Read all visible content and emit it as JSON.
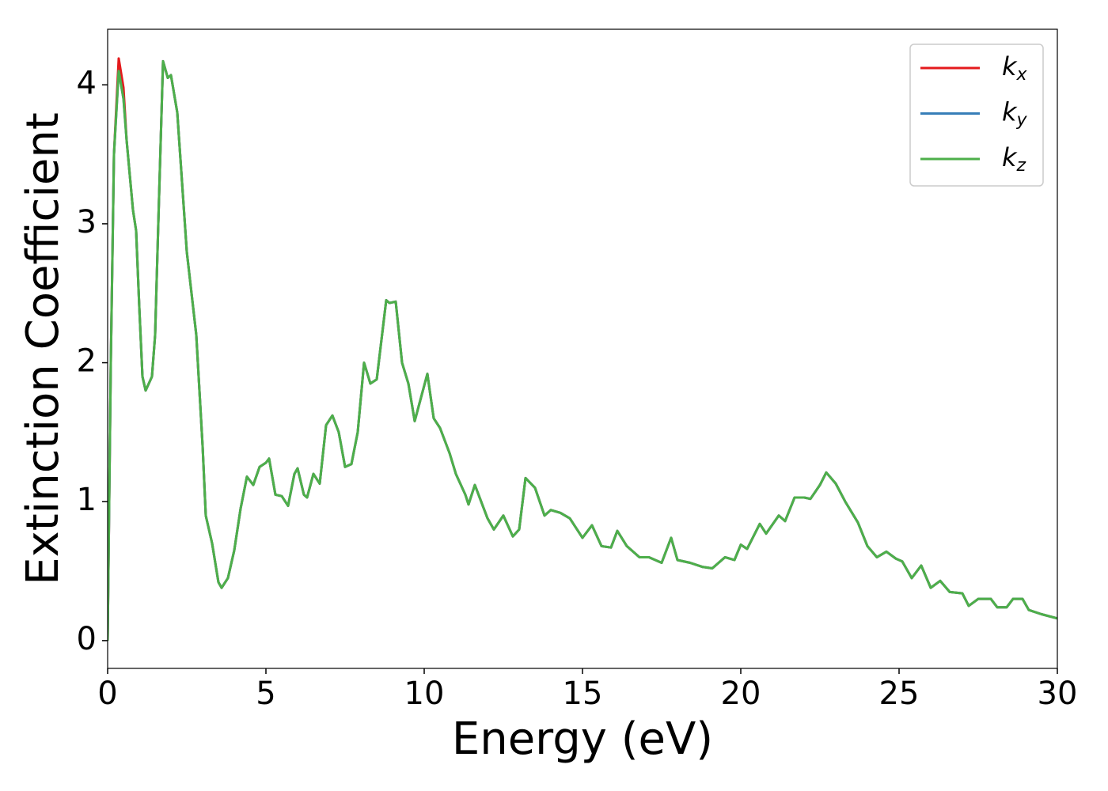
{
  "chart_data": {
    "type": "line",
    "xlabel": "Energy (eV)",
    "ylabel": "Extinction Coefficient",
    "x": [
      0,
      0.1,
      0.2,
      0.35,
      0.5,
      0.6,
      0.8,
      0.9,
      1.0,
      1.1,
      1.2,
      1.4,
      1.5,
      1.6,
      1.75,
      1.9,
      2.0,
      2.2,
      2.5,
      2.8,
      3.0,
      3.1,
      3.3,
      3.5,
      3.6,
      3.8,
      4.0,
      4.2,
      4.4,
      4.6,
      4.8,
      5.0,
      5.1,
      5.3,
      5.5,
      5.7,
      5.9,
      6.0,
      6.2,
      6.3,
      6.5,
      6.7,
      6.9,
      7.1,
      7.3,
      7.5,
      7.7,
      7.9,
      8.1,
      8.3,
      8.5,
      8.8,
      8.9,
      9.1,
      9.3,
      9.5,
      9.7,
      9.9,
      10.1,
      10.3,
      10.5,
      10.8,
      11.0,
      11.3,
      11.4,
      11.6,
      11.8,
      12.0,
      12.2,
      12.5,
      12.8,
      13.0,
      13.2,
      13.5,
      13.8,
      14.0,
      14.3,
      14.6,
      15.0,
      15.3,
      15.6,
      15.9,
      16.1,
      16.4,
      16.8,
      17.1,
      17.5,
      17.8,
      18.0,
      18.4,
      18.8,
      19.1,
      19.5,
      19.8,
      20.0,
      20.2,
      20.6,
      20.8,
      21.2,
      21.4,
      21.7,
      22.0,
      22.2,
      22.5,
      22.7,
      23.0,
      23.3,
      23.7,
      24.0,
      24.3,
      24.6,
      24.9,
      25.1,
      25.4,
      25.7,
      26.0,
      26.3,
      26.6,
      27.0,
      27.2,
      27.5,
      27.9,
      28.1,
      28.4,
      28.6,
      28.9,
      29.1,
      29.5,
      30.0
    ],
    "series": [
      {
        "name": "kx",
        "color": "#e41a1c",
        "values": [
          0,
          2.0,
          3.5,
          4.19,
          3.98,
          3.6,
          3.1,
          2.95,
          2.4,
          1.9,
          1.8,
          1.9,
          2.2,
          3.0,
          4.17,
          4.05,
          4.07,
          3.8,
          2.8,
          2.2,
          1.4,
          0.9,
          0.7,
          0.42,
          0.38,
          0.45,
          0.65,
          0.95,
          1.18,
          1.12,
          1.25,
          1.28,
          1.31,
          1.05,
          1.04,
          0.97,
          1.2,
          1.24,
          1.05,
          1.03,
          1.2,
          1.13,
          1.55,
          1.62,
          1.5,
          1.25,
          1.27,
          1.5,
          2.0,
          1.85,
          1.88,
          2.45,
          2.43,
          2.44,
          2.0,
          1.85,
          1.58,
          1.75,
          1.92,
          1.6,
          1.53,
          1.35,
          1.2,
          1.05,
          0.98,
          1.12,
          1.0,
          0.88,
          0.8,
          0.9,
          0.75,
          0.8,
          1.17,
          1.1,
          0.9,
          0.94,
          0.92,
          0.88,
          0.74,
          0.83,
          0.68,
          0.67,
          0.79,
          0.68,
          0.6,
          0.6,
          0.56,
          0.74,
          0.58,
          0.56,
          0.53,
          0.52,
          0.6,
          0.58,
          0.69,
          0.66,
          0.84,
          0.77,
          0.9,
          0.86,
          1.03,
          1.03,
          1.02,
          1.12,
          1.21,
          1.13,
          1.0,
          0.85,
          0.68,
          0.6,
          0.64,
          0.59,
          0.57,
          0.45,
          0.54,
          0.38,
          0.43,
          0.35,
          0.34,
          0.25,
          0.3,
          0.3,
          0.24,
          0.24,
          0.3,
          0.3,
          0.22,
          0.19,
          0.16
        ]
      },
      {
        "name": "ky",
        "color": "#377eb8",
        "values": [
          0,
          2.0,
          3.5,
          4.1,
          3.9,
          3.6,
          3.1,
          2.95,
          2.4,
          1.9,
          1.8,
          1.9,
          2.2,
          3.0,
          4.17,
          4.05,
          4.07,
          3.8,
          2.8,
          2.2,
          1.4,
          0.9,
          0.7,
          0.42,
          0.38,
          0.45,
          0.65,
          0.95,
          1.18,
          1.12,
          1.25,
          1.28,
          1.31,
          1.05,
          1.04,
          0.97,
          1.2,
          1.24,
          1.05,
          1.03,
          1.2,
          1.13,
          1.55,
          1.62,
          1.5,
          1.25,
          1.27,
          1.5,
          2.0,
          1.85,
          1.88,
          2.45,
          2.43,
          2.44,
          2.0,
          1.85,
          1.58,
          1.75,
          1.92,
          1.6,
          1.53,
          1.35,
          1.2,
          1.05,
          0.98,
          1.12,
          1.0,
          0.88,
          0.8,
          0.9,
          0.75,
          0.8,
          1.17,
          1.1,
          0.9,
          0.94,
          0.92,
          0.88,
          0.74,
          0.83,
          0.68,
          0.67,
          0.79,
          0.68,
          0.6,
          0.6,
          0.56,
          0.74,
          0.58,
          0.56,
          0.53,
          0.52,
          0.6,
          0.58,
          0.69,
          0.66,
          0.84,
          0.77,
          0.9,
          0.86,
          1.03,
          1.03,
          1.02,
          1.12,
          1.21,
          1.13,
          1.0,
          0.85,
          0.68,
          0.6,
          0.64,
          0.59,
          0.57,
          0.45,
          0.54,
          0.38,
          0.43,
          0.35,
          0.34,
          0.25,
          0.3,
          0.3,
          0.24,
          0.24,
          0.3,
          0.3,
          0.22,
          0.19,
          0.16
        ]
      },
      {
        "name": "kz",
        "color": "#4daf4a",
        "values": [
          0,
          2.0,
          3.5,
          4.1,
          3.9,
          3.6,
          3.1,
          2.95,
          2.4,
          1.9,
          1.8,
          1.9,
          2.2,
          3.0,
          4.17,
          4.05,
          4.07,
          3.8,
          2.8,
          2.2,
          1.4,
          0.9,
          0.7,
          0.42,
          0.38,
          0.45,
          0.65,
          0.95,
          1.18,
          1.12,
          1.25,
          1.28,
          1.31,
          1.05,
          1.04,
          0.97,
          1.2,
          1.24,
          1.05,
          1.03,
          1.2,
          1.13,
          1.55,
          1.62,
          1.5,
          1.25,
          1.27,
          1.5,
          2.0,
          1.85,
          1.88,
          2.45,
          2.43,
          2.44,
          2.0,
          1.85,
          1.58,
          1.75,
          1.92,
          1.6,
          1.53,
          1.35,
          1.2,
          1.05,
          0.98,
          1.12,
          1.0,
          0.88,
          0.8,
          0.9,
          0.75,
          0.8,
          1.17,
          1.1,
          0.9,
          0.94,
          0.92,
          0.88,
          0.74,
          0.83,
          0.68,
          0.67,
          0.79,
          0.68,
          0.6,
          0.6,
          0.56,
          0.74,
          0.58,
          0.56,
          0.53,
          0.52,
          0.6,
          0.58,
          0.69,
          0.66,
          0.84,
          0.77,
          0.9,
          0.86,
          1.03,
          1.03,
          1.02,
          1.12,
          1.21,
          1.13,
          1.0,
          0.85,
          0.68,
          0.6,
          0.64,
          0.59,
          0.57,
          0.45,
          0.54,
          0.38,
          0.43,
          0.35,
          0.34,
          0.25,
          0.3,
          0.3,
          0.24,
          0.24,
          0.3,
          0.3,
          0.22,
          0.19,
          0.16
        ]
      }
    ],
    "xlim": [
      0,
      30
    ],
    "xticks": [
      0,
      5,
      10,
      15,
      20,
      25,
      30
    ],
    "ylim": [
      -0.2,
      4.4
    ],
    "yticks": [
      0,
      1,
      2,
      3,
      4
    ],
    "legend": "upper right",
    "grid": false
  }
}
